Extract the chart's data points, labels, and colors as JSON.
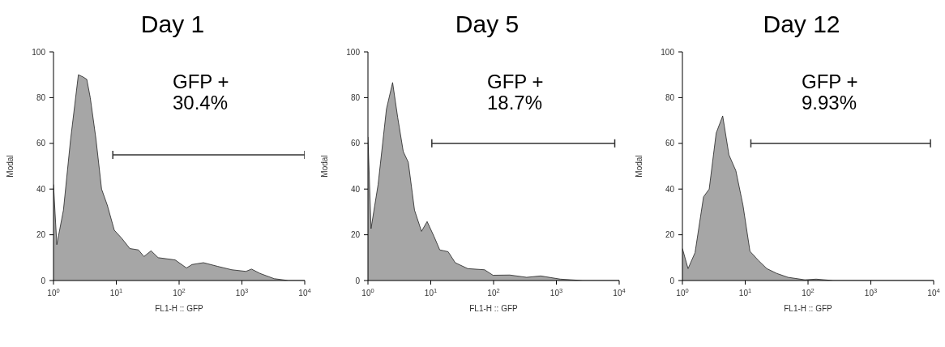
{
  "chart_data": [
    {
      "type": "area",
      "title": "Day 1",
      "xlabel": "FL1-H :: GFP",
      "ylabel": "Modal",
      "annotations": [
        "GFP +\n30.4%"
      ],
      "log": "x",
      "xlim": [
        1,
        10000
      ],
      "xticks": [
        {
          "value": 1,
          "label": "10$^{0}$"
        },
        {
          "value": 10,
          "label": "10$^{1}$"
        },
        {
          "value": 100,
          "label": "10$^{2}$"
        },
        {
          "value": 1000,
          "label": "10$^{3}$"
        },
        {
          "value": 10000,
          "label": "10$^{4}$"
        }
      ],
      "ylim": [
        0,
        100
      ],
      "yticks": [
        0,
        20,
        40,
        60,
        80,
        100
      ],
      "series": [
        {
          "color": "#a6a6a6",
          "x": [
            1,
            1.13,
            1.44,
            1.86,
            2.49,
            2.97,
            3.39,
            3.85,
            4.74,
            5.83,
            7.18,
            9.3,
            12.1,
            16.4,
            22.5,
            27.6,
            35.8,
            46.4,
            86.5,
            131,
            161,
            244,
            410,
            689,
            1156,
            1422,
            1941,
            3266,
            5480,
            10000
          ],
          "values": [
            42,
            15.7,
            30.8,
            61,
            90,
            89,
            88,
            80,
            62,
            40,
            33,
            22,
            18.6,
            14,
            13.4,
            10.5,
            13,
            10,
            9,
            5.5,
            7,
            7.8,
            6.2,
            4.7,
            4,
            5,
            3.1,
            0.8,
            0,
            0
          ]
        },
        {
          "type": "line",
          "color": "#333333",
          "x": [
            8.8,
            10000
          ],
          "values": [
            55,
            55
          ]
        }
      ]
    },
    {
      "type": "area",
      "title": "Day 5",
      "xlabel": "FL1-H :: GFP",
      "ylabel": "Modal",
      "annotations": [
        "GFP +\n18.7%"
      ],
      "log": "x",
      "xlim": [
        1,
        10000
      ],
      "xticks": [
        {
          "value": 1,
          "label": "10$^{0}$"
        },
        {
          "value": 10,
          "label": "10$^{1}$"
        },
        {
          "value": 100,
          "label": "10$^{2}$"
        },
        {
          "value": 1000,
          "label": "10$^{3}$"
        },
        {
          "value": 10000,
          "label": "10$^{4}$"
        }
      ],
      "ylim": [
        0,
        100
      ],
      "yticks": [
        0,
        20,
        40,
        60,
        80,
        100
      ],
      "series": [
        {
          "color": "#a6a6a6",
          "x": [
            1,
            1.12,
            1.45,
            1.97,
            2.47,
            2.97,
            3.65,
            4.39,
            5.51,
            7.12,
            8.75,
            11.3,
            13.9,
            18.9,
            24.5,
            38.8,
            71.9,
            98,
            181,
            336,
            562,
            1156,
            2630,
            10000
          ],
          "values": [
            62.8,
            22.7,
            41.9,
            75,
            86.6,
            71.5,
            56.4,
            51.7,
            30.8,
            21.5,
            25.8,
            19.2,
            13.4,
            12.6,
            7.8,
            5.2,
            4.7,
            2.3,
            2.4,
            1.4,
            2,
            0.6,
            0,
            0
          ]
        },
        {
          "type": "line",
          "color": "#333333",
          "x": [
            10.4,
            8500
          ],
          "values": [
            60,
            60
          ]
        }
      ]
    },
    {
      "type": "area",
      "title": "Day 12",
      "xlabel": "FL1-H :: GFP",
      "ylabel": "Modal",
      "annotations": [
        "GFP +\n9.93%"
      ],
      "log": "x",
      "xlim": [
        1,
        10000
      ],
      "xticks": [
        {
          "value": 1,
          "label": "10$^{0}$"
        },
        {
          "value": 10,
          "label": "10$^{1}$"
        },
        {
          "value": 100,
          "label": "10$^{2}$"
        },
        {
          "value": 1000,
          "label": "10$^{3}$"
        },
        {
          "value": 10000,
          "label": "10$^{4}$"
        }
      ],
      "ylim": [
        0,
        100
      ],
      "yticks": [
        0,
        20,
        40,
        60,
        80,
        100
      ],
      "series": [
        {
          "color": "#a6a6a6",
          "x": [
            1,
            1.23,
            1.59,
            2.17,
            2.67,
            3.45,
            4.38,
            5.5,
            7.1,
            9.2,
            11.9,
            16.3,
            22.1,
            31.8,
            48,
            89,
            135,
            251,
            10000
          ],
          "values": [
            14,
            5.2,
            12.2,
            36.6,
            40,
            64.5,
            72,
            55,
            48,
            33,
            12.8,
            8.7,
            5.2,
            3.1,
            1.4,
            0.3,
            0.6,
            0,
            0
          ]
        },
        {
          "type": "line",
          "color": "#333333",
          "x": [
            12.3,
            8900
          ],
          "values": [
            60,
            60
          ]
        }
      ]
    }
  ]
}
